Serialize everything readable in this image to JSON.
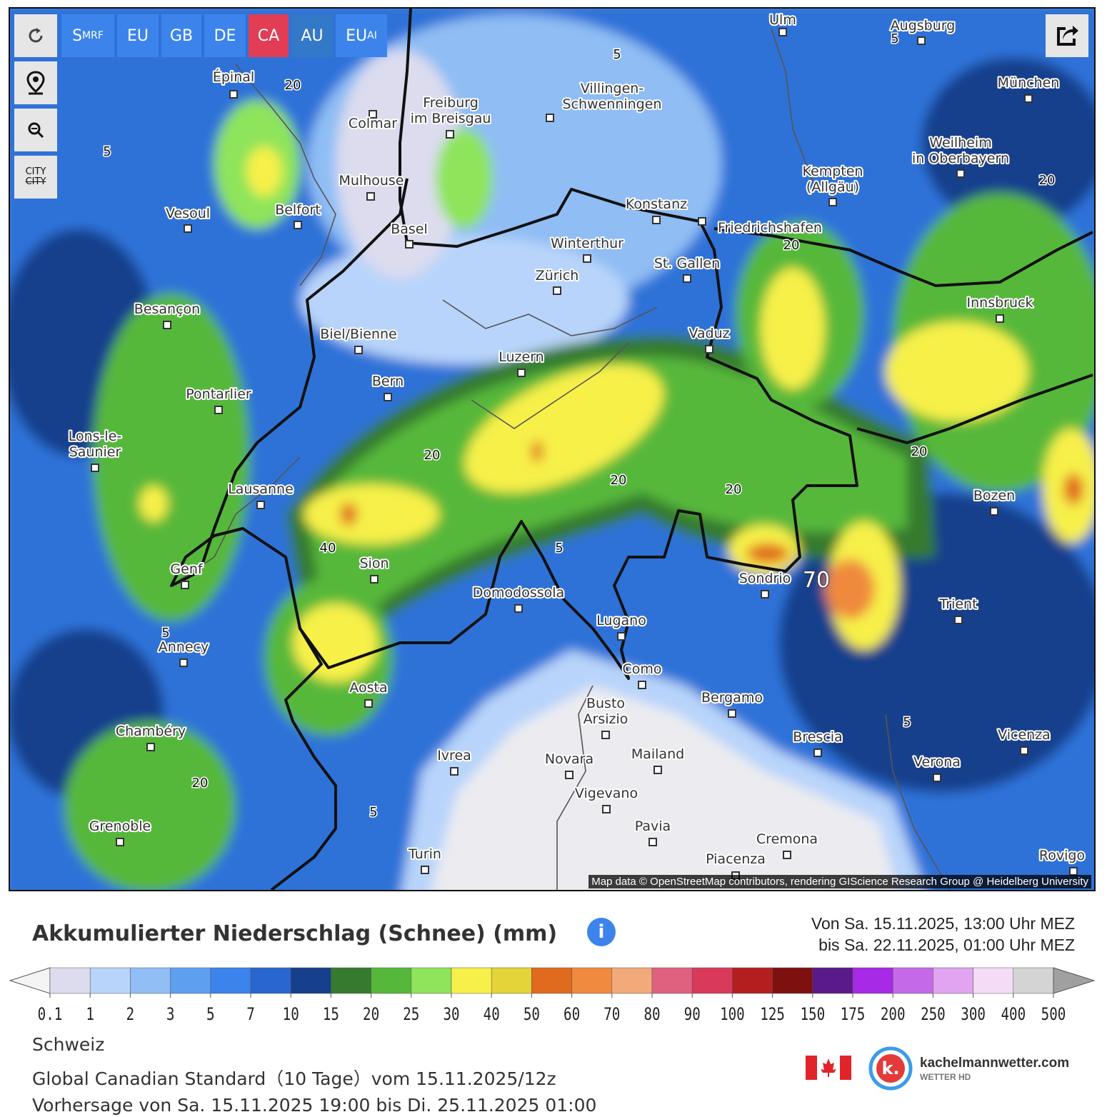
{
  "toolbar": {
    "buttons": [
      {
        "main": "S",
        "sub": "MRF"
      },
      {
        "main": "EU"
      },
      {
        "main": "GB"
      },
      {
        "main": "DE"
      },
      {
        "main": "CA"
      },
      {
        "main": "AU"
      },
      {
        "main": "EU",
        "sub": "AI"
      }
    ],
    "city_button": [
      "CITY",
      "CITY"
    ]
  },
  "map": {
    "cities": [
      {
        "name": [
          "Ulm"
        ]
      },
      {
        "name": [
          "Augsburg"
        ]
      },
      {
        "name": [
          "München"
        ]
      },
      {
        "name": [
          "Épinal"
        ]
      },
      {
        "name": [
          "Colmar"
        ]
      },
      {
        "name": [
          "Freiburg",
          "im Breisgau"
        ]
      },
      {
        "name": [
          "Villingen-",
          "Schwenningen"
        ]
      },
      {
        "name": [
          "Mulhouse"
        ]
      },
      {
        "name": [
          "Vesoul"
        ]
      },
      {
        "name": [
          "Belfort"
        ]
      },
      {
        "name": [
          "Basel"
        ]
      },
      {
        "name": [
          "Konstanz"
        ]
      },
      {
        "name": [
          "Friedrichshafen"
        ]
      },
      {
        "name": [
          "Kempten",
          "(Allgäu)"
        ]
      },
      {
        "name": [
          "Weilheim",
          "in Oberbayern"
        ]
      },
      {
        "name": [
          "Winterthur"
        ]
      },
      {
        "name": [
          "Zürich"
        ]
      },
      {
        "name": [
          "St. Gallen"
        ]
      },
      {
        "name": [
          "Besançon"
        ]
      },
      {
        "name": [
          "Biel/Bienne"
        ]
      },
      {
        "name": [
          "Vaduz"
        ]
      },
      {
        "name": [
          "Innsbruck"
        ]
      },
      {
        "name": [
          "Luzern"
        ]
      },
      {
        "name": [
          "Bern"
        ]
      },
      {
        "name": [
          "Pontarlier"
        ]
      },
      {
        "name": [
          "Lons-le-",
          "Saunier"
        ]
      },
      {
        "name": [
          "Lausanne"
        ]
      },
      {
        "name": [
          "Bozen"
        ]
      },
      {
        "name": [
          "Genf"
        ]
      },
      {
        "name": [
          "Sion"
        ]
      },
      {
        "name": [
          "Domodossola"
        ]
      },
      {
        "name": [
          "Sondrio"
        ]
      },
      {
        "name": [
          "Trient"
        ]
      },
      {
        "name": [
          "Lugano"
        ]
      },
      {
        "name": [
          "Annecy"
        ]
      },
      {
        "name": [
          "Como"
        ]
      },
      {
        "name": [
          "Aosta"
        ]
      },
      {
        "name": [
          "Bergamo"
        ]
      },
      {
        "name": [
          "Chambéry"
        ]
      },
      {
        "name": [
          "Busto",
          "Arsizio"
        ]
      },
      {
        "name": [
          "Brescia"
        ]
      },
      {
        "name": [
          "Vicenza"
        ]
      },
      {
        "name": [
          "Mailand"
        ]
      },
      {
        "name": [
          "Ivrea"
        ]
      },
      {
        "name": [
          "Novara"
        ]
      },
      {
        "name": [
          "Verona"
        ]
      },
      {
        "name": [
          "Vigevano"
        ]
      },
      {
        "name": [
          "Grenoble"
        ]
      },
      {
        "name": [
          "Pavia"
        ]
      },
      {
        "name": [
          "Cremona"
        ]
      },
      {
        "name": [
          "Turin"
        ]
      },
      {
        "name": [
          "Piacenza"
        ]
      },
      {
        "name": [
          "Rovigo"
        ]
      }
    ],
    "contour_labels": [
      5,
      5,
      5,
      20,
      20,
      20,
      20,
      20,
      20,
      20,
      20,
      40,
      70,
      5,
      5,
      5,
      5
    ],
    "attribution": "Map data © OpenStreetMap contributors, rendering GIScience Research Group @ Heidelberg University"
  },
  "title": "Akkumulierter Niederschlag (Schnee) (mm)",
  "info": "i",
  "period": [
    "Von Sa. 15.11.2025, 13:00 Uhr MEZ",
    "bis Sa. 22.11.2025, 01:00 Uhr MEZ"
  ],
  "legend": {
    "ticks": [
      0.1,
      1,
      2,
      3,
      5,
      7,
      10,
      15,
      20,
      25,
      30,
      40,
      50,
      60,
      70,
      80,
      90,
      100,
      125,
      150,
      175,
      200,
      250,
      300,
      400,
      500
    ],
    "colors": [
      "#dcdcee",
      "#b8d4fa",
      "#90bef5",
      "#5f9ff0",
      "#3c84ec",
      "#2a66d0",
      "#163f8c",
      "#357a2e",
      "#56b83a",
      "#8ee45a",
      "#f7f04a",
      "#e4d43a",
      "#e06a1e",
      "#ef8a3e",
      "#f2aa7a",
      "#e06080",
      "#da3a5a",
      "#b41e1e",
      "#7e1010",
      "#5a1a8a",
      "#a62ae6",
      "#c46ae8",
      "#e0a4f0",
      "#f4dcf6",
      "#d4d4d4"
    ],
    "under_color": "#f4f4f4",
    "over_color": "#a0a0a0"
  },
  "footer": [
    "Schweiz",
    "Global Canadian Standard（10 Tage）vom 15.11.2025/12z",
    "Vorhersage von Sa. 15.11.2025 19:00 bis Di. 25.11.2025 01:00"
  ],
  "logo": {
    "mark": "k.",
    "name": "kachelmannwetter.com",
    "tagline": "WETTER HD"
  }
}
